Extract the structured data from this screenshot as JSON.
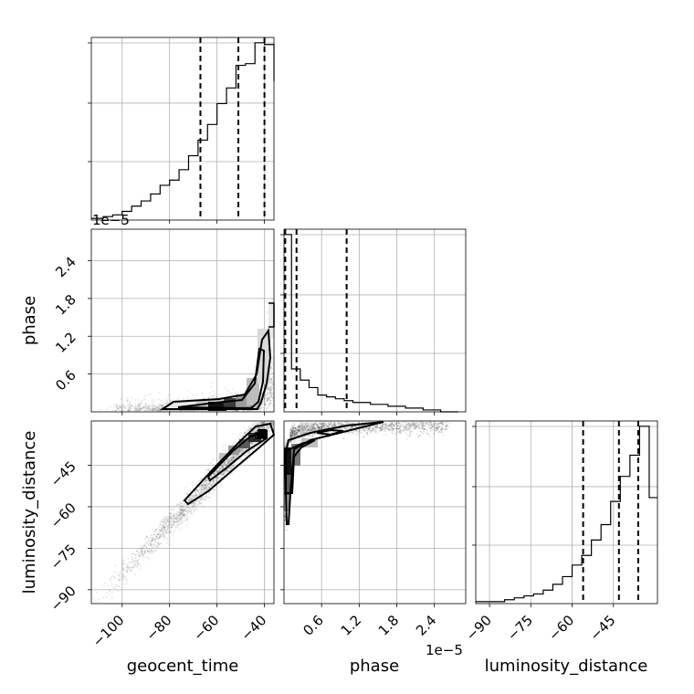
{
  "chart_data": {
    "type": "corner",
    "offset_text": "1e−5",
    "grid": true,
    "params": [
      {
        "key": "geocent_time",
        "label": "geocent_time",
        "range": [
          -113,
          -36
        ],
        "ticks": [
          -100,
          -80,
          -60,
          -40
        ],
        "tick_labels": [
          "−100",
          "−80",
          "−60",
          "−40"
        ],
        "quantiles": [
          -67,
          -51,
          -40
        ]
      },
      {
        "key": "phase",
        "label": "phase",
        "range": [
          0,
          2.9
        ],
        "ticks": [
          0.6,
          1.2,
          1.8,
          2.4
        ],
        "tick_labels": [
          "0.6",
          "1.2",
          "1.8",
          "2.4"
        ],
        "quantiles": [
          0.02,
          0.2,
          1.0
        ]
      },
      {
        "key": "luminosity_distance",
        "label": "luminosity_distance",
        "range": [
          -95,
          -29
        ],
        "ticks": [
          -90,
          -75,
          -60,
          -45
        ],
        "tick_labels": [
          "−90",
          "−75",
          "−60",
          "−45"
        ],
        "quantiles": [
          -56,
          -43,
          -36
        ]
      }
    ],
    "histograms": {
      "geocent_time": {
        "edges": [
          -113,
          -108,
          -104,
          -100,
          -96,
          -92,
          -88,
          -84,
          -80,
          -76,
          -72,
          -68,
          -64,
          -60,
          -56,
          -52,
          -48,
          -44,
          -40,
          -36
        ],
        "values": [
          1,
          2,
          3,
          5,
          8,
          11,
          15,
          20,
          23,
          29,
          37,
          46,
          55,
          67,
          76,
          89,
          90,
          102,
          101,
          80
        ]
      },
      "phase": {
        "edges": [
          0.0,
          0.12,
          0.26,
          0.4,
          0.54,
          0.68,
          0.82,
          0.96,
          1.1,
          1.24,
          1.38,
          1.52,
          1.66,
          1.8,
          1.94,
          2.08,
          2.22,
          2.36,
          2.5,
          2.64,
          2.78
        ],
        "values": [
          95,
          23,
          17,
          13,
          9,
          8,
          7,
          6,
          5,
          5,
          4,
          4,
          3,
          3,
          2,
          2,
          1,
          1,
          0,
          0
        ]
      },
      "luminosity_distance": {
        "edges": [
          -95,
          -91.5,
          -88,
          -84.5,
          -81,
          -77.5,
          -74,
          -70.5,
          -67,
          -63.5,
          -60,
          -56.5,
          -53,
          -49.5,
          -46,
          -42.5,
          -39,
          -35.5,
          -32,
          -29
        ],
        "values": [
          1,
          1,
          1,
          2,
          3,
          4,
          5,
          7,
          10,
          14,
          20,
          25,
          33,
          41,
          53,
          66,
          77,
          92,
          55
        ]
      }
    },
    "pairs": [
      {
        "x": "geocent_time",
        "y": "phase"
      },
      {
        "x": "geocent_time",
        "y": "luminosity_distance"
      },
      {
        "x": "phase",
        "y": "luminosity_distance"
      }
    ]
  }
}
